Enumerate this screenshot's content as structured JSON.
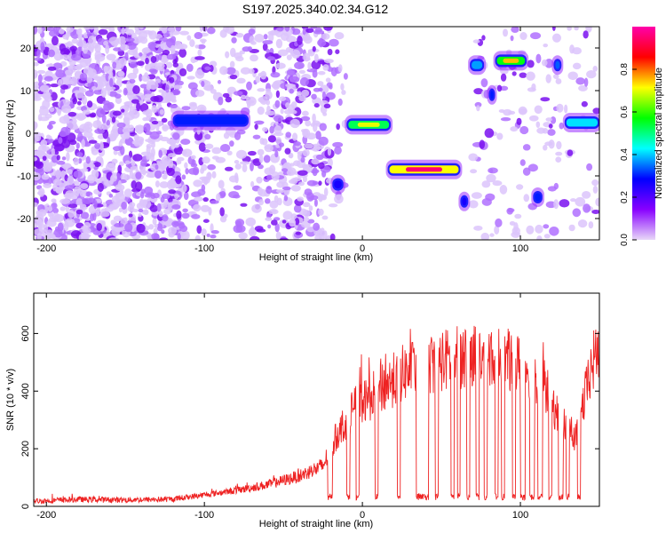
{
  "title": "S197.2025.340.02.34.G12",
  "chart_data": [
    {
      "type": "heatmap",
      "xlabel": "Height of straight line (km)",
      "ylabel": "Frequency (Hz)",
      "xlim": [
        -208,
        150
      ],
      "ylim": [
        -25,
        25
      ],
      "xticks": [
        -200,
        -100,
        0,
        100
      ],
      "yticks": [
        -20,
        -10,
        0,
        10,
        20
      ],
      "colorbar": {
        "label": "Normalized spectral amplitude",
        "range": [
          0,
          1
        ],
        "ticks": [
          "0.0",
          "0.2",
          "0.4",
          "0.6",
          "0.8"
        ],
        "stops": [
          "#e8d8f8",
          "#8800ff",
          "#0000ff",
          "#00ffff",
          "#00ff00",
          "#ffff00",
          "#ff0000",
          "#ff00aa"
        ]
      },
      "features": [
        {
          "x": [
            -120,
            -72
          ],
          "freq": 3,
          "amp": 0.4
        },
        {
          "x": [
            -19,
            -12
          ],
          "freq": -12,
          "amp": 0.35
        },
        {
          "x": [
            -10,
            18
          ],
          "freq": 2,
          "amp": 0.7
        },
        {
          "x": [
            16,
            62
          ],
          "freq": -8.5,
          "amp": 0.95
        },
        {
          "x": [
            62,
            67
          ],
          "freq": -16,
          "amp": 0.35
        },
        {
          "x": [
            68,
            77
          ],
          "freq": 16,
          "amp": 0.5
        },
        {
          "x": [
            80,
            84
          ],
          "freq": 9,
          "amp": 0.4
        },
        {
          "x": [
            84,
            104
          ],
          "freq": 17,
          "amp": 0.75
        },
        {
          "x": [
            108,
            114
          ],
          "freq": -15,
          "amp": 0.4
        },
        {
          "x": [
            121,
            126
          ],
          "freq": 16,
          "amp": 0.45
        },
        {
          "x": [
            128,
            150
          ],
          "freq": 2.5,
          "amp": 0.55
        }
      ]
    },
    {
      "type": "line",
      "xlabel": "Height of straight line (km)",
      "ylabel": "SNR (10 * v/v)",
      "xlim": [
        -208,
        150
      ],
      "ylim": [
        0,
        740
      ],
      "xticks": [
        -200,
        -100,
        0,
        100
      ],
      "yticks": [
        0,
        200,
        400,
        600
      ],
      "series": [
        {
          "name": "SNR",
          "color": "#ee2222",
          "x": [
            -208,
            -180,
            -150,
            -120,
            -100,
            -80,
            -60,
            -40,
            -25,
            -15,
            -5,
            5,
            15,
            25,
            35,
            45,
            55,
            65,
            75,
            85,
            95,
            105,
            115,
            125,
            135,
            145,
            150
          ],
          "y": [
            18,
            24,
            22,
            25,
            40,
            55,
            75,
            105,
            140,
            260,
            340,
            380,
            420,
            460,
            480,
            500,
            510,
            520,
            530,
            520,
            500,
            480,
            420,
            300,
            240,
            480,
            560
          ],
          "dropouts": [
            [
              -22,
              -19
            ],
            [
              -10,
              -8
            ],
            [
              -4,
              -2
            ],
            [
              8,
              10
            ],
            [
              22,
              24
            ],
            [
              34,
              42
            ],
            [
              46,
              48
            ],
            [
              56,
              58
            ],
            [
              60,
              62
            ],
            [
              66,
              68
            ],
            [
              72,
              74
            ],
            [
              77,
              79
            ],
            [
              84,
              86
            ],
            [
              88,
              90
            ],
            [
              95,
              97
            ],
            [
              100,
              103
            ],
            [
              106,
              109
            ],
            [
              111,
              114
            ],
            [
              118,
              120
            ],
            [
              124,
              127
            ],
            [
              129,
              131
            ],
            [
              136,
              138
            ]
          ]
        }
      ]
    }
  ]
}
